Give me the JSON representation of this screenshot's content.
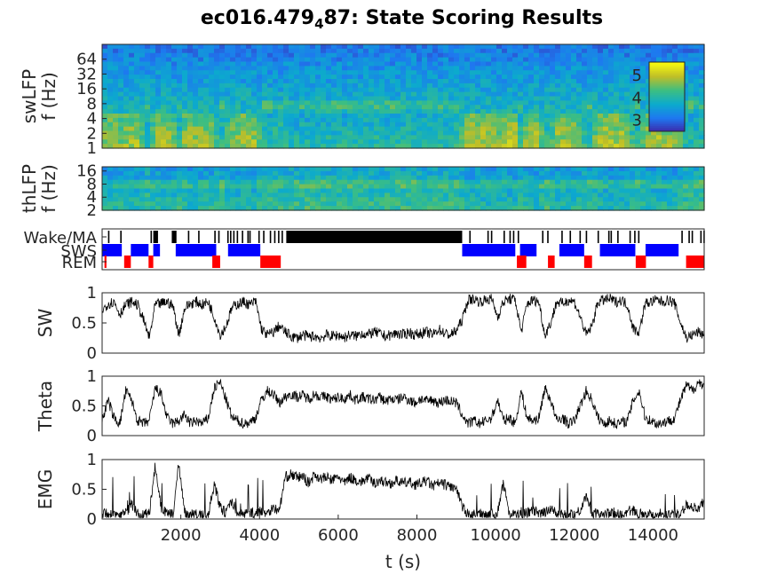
{
  "title": {
    "prefix": "ec016.479",
    "subscript": "4",
    "suffix": "87: State Scoring Results"
  },
  "colors": {
    "wake": "#000000",
    "sws": "#0000ff",
    "rem": "#ff0000",
    "trace": "#000000",
    "axis": "#262626"
  },
  "chart_data": [
    {
      "id": "swlfp",
      "type": "heatmap",
      "ylabel": [
        "swLFP",
        "f (Hz)"
      ],
      "yscale": "log",
      "yticks": [
        1,
        2,
        4,
        8,
        16,
        32,
        64
      ],
      "yticklabels": [
        "1",
        "2",
        "4",
        "8",
        "16",
        "32",
        "64"
      ],
      "ylim": [
        1,
        128
      ],
      "xlim": [
        0,
        15300
      ],
      "colormap": "parula",
      "colorbar": {
        "ticks": [
          3,
          4,
          5
        ],
        "labels": [
          "3",
          "4",
          "5"
        ],
        "clim": [
          2.5,
          5.6
        ],
        "placement": "inside-right"
      }
    },
    {
      "id": "thlfp",
      "type": "heatmap",
      "ylabel": [
        "thLFP",
        "f (Hz)"
      ],
      "yscale": "log",
      "yticks": [
        2,
        4,
        8,
        16
      ],
      "yticklabels": [
        "2",
        "4",
        "8",
        "16"
      ],
      "ylim": [
        2,
        20
      ],
      "xlim": [
        0,
        15300
      ],
      "colormap": "parula"
    },
    {
      "id": "states",
      "type": "bar",
      "yticklabels": [
        "Wake/MA",
        "SWS",
        "REM"
      ],
      "xlim": [
        0,
        15300
      ],
      "sws": [
        [
          0,
          500
        ],
        [
          730,
          1180
        ],
        [
          1300,
          1470
        ],
        [
          1870,
          2900
        ],
        [
          3200,
          4020
        ],
        [
          9150,
          10500
        ],
        [
          10620,
          11040
        ],
        [
          11620,
          12250
        ],
        [
          12650,
          13550
        ],
        [
          13810,
          14650
        ]
      ],
      "rem": [
        [
          60,
          110
        ],
        [
          560,
          730
        ],
        [
          1180,
          1300
        ],
        [
          2800,
          3000
        ],
        [
          4020,
          4540
        ],
        [
          10540,
          10780
        ],
        [
          11330,
          11500
        ],
        [
          12250,
          12450
        ],
        [
          13560,
          13820
        ],
        [
          14840,
          15300
        ]
      ],
      "wake": [
        [
          1300,
          1420
        ],
        [
          1770,
          1890
        ],
        [
          4680,
          9150
        ]
      ],
      "wake_ticks": [
        150,
        460,
        1230,
        2180,
        2440,
        2850,
        2950,
        3180,
        3250,
        3330,
        3420,
        3550,
        3690,
        3740,
        3970,
        4090,
        4260,
        4370,
        4470,
        4560,
        9330,
        9790,
        9880,
        10200,
        10350,
        10440,
        10560,
        11180,
        11310,
        11670,
        11880,
        12130,
        12290,
        12590,
        12860,
        12920,
        13090,
        13400,
        13520,
        13620,
        14720,
        14900,
        14980,
        15200,
        15280
      ]
    },
    {
      "id": "sw",
      "type": "line",
      "ylabel": "SW",
      "ylim": [
        0,
        1
      ],
      "yticks": [
        0,
        0.5,
        1
      ],
      "yticklabels": [
        "0",
        "0.5",
        "1"
      ],
      "xlim": [
        0,
        15300
      ],
      "x": [
        0,
        150,
        300,
        450,
        600,
        750,
        900,
        1050,
        1200,
        1350,
        1500,
        1650,
        1800,
        1950,
        2100,
        2250,
        2400,
        2550,
        2700,
        2850,
        3000,
        3150,
        3300,
        3450,
        3600,
        3750,
        3900,
        4050,
        4200,
        4350,
        4500,
        4650,
        4800,
        4950,
        5100,
        5250,
        5400,
        5550,
        5700,
        5850,
        6000,
        6150,
        6300,
        6450,
        6600,
        6750,
        6900,
        7050,
        7200,
        7350,
        7500,
        7650,
        7800,
        7950,
        8100,
        8250,
        8400,
        8550,
        8700,
        8850,
        9000,
        9150,
        9300,
        9450,
        9600,
        9750,
        9900,
        10050,
        10200,
        10350,
        10500,
        10650,
        10800,
        10950,
        11100,
        11250,
        11400,
        11550,
        11700,
        11850,
        12000,
        12150,
        12300,
        12450,
        12600,
        12750,
        12900,
        13050,
        13200,
        13350,
        13500,
        13650,
        13800,
        13950,
        14100,
        14250,
        14400,
        14550,
        14700,
        14850,
        15000,
        15150,
        15300
      ],
      "values": [
        0.7,
        0.82,
        0.85,
        0.65,
        0.8,
        0.85,
        0.8,
        0.55,
        0.25,
        0.8,
        0.82,
        0.85,
        0.78,
        0.3,
        0.75,
        0.82,
        0.85,
        0.8,
        0.85,
        0.6,
        0.3,
        0.45,
        0.75,
        0.82,
        0.85,
        0.8,
        0.86,
        0.4,
        0.3,
        0.35,
        0.45,
        0.35,
        0.28,
        0.25,
        0.3,
        0.27,
        0.28,
        0.25,
        0.3,
        0.28,
        0.3,
        0.26,
        0.3,
        0.28,
        0.33,
        0.3,
        0.35,
        0.32,
        0.28,
        0.3,
        0.33,
        0.3,
        0.35,
        0.3,
        0.33,
        0.35,
        0.3,
        0.4,
        0.33,
        0.3,
        0.37,
        0.55,
        0.88,
        0.9,
        0.85,
        0.88,
        0.9,
        0.6,
        0.85,
        0.9,
        0.88,
        0.35,
        0.82,
        0.88,
        0.85,
        0.3,
        0.5,
        0.85,
        0.82,
        0.88,
        0.85,
        0.6,
        0.3,
        0.45,
        0.85,
        0.88,
        0.9,
        0.85,
        0.88,
        0.8,
        0.4,
        0.35,
        0.82,
        0.85,
        0.88,
        0.85,
        0.88,
        0.82,
        0.5,
        0.25,
        0.3,
        0.35,
        0.3
      ]
    },
    {
      "id": "theta",
      "type": "line",
      "ylabel": "Theta",
      "ylim": [
        0,
        1
      ],
      "yticks": [
        0,
        0.5,
        1
      ],
      "yticklabels": [
        "0",
        "0.5",
        "1"
      ],
      "xlim": [
        0,
        15300
      ],
      "x": [
        0,
        150,
        300,
        450,
        600,
        750,
        900,
        1050,
        1200,
        1350,
        1500,
        1650,
        1800,
        1950,
        2100,
        2250,
        2400,
        2550,
        2700,
        2850,
        3000,
        3150,
        3300,
        3450,
        3600,
        3750,
        3900,
        4050,
        4200,
        4350,
        4500,
        4650,
        4800,
        4950,
        5100,
        5250,
        5400,
        5550,
        5700,
        5850,
        6000,
        6150,
        6300,
        6450,
        6600,
        6750,
        6900,
        7050,
        7200,
        7350,
        7500,
        7650,
        7800,
        7950,
        8100,
        8250,
        8400,
        8550,
        8700,
        8850,
        9000,
        9150,
        9300,
        9450,
        9600,
        9750,
        9900,
        10050,
        10200,
        10350,
        10500,
        10650,
        10800,
        10950,
        11100,
        11250,
        11400,
        11550,
        11700,
        11850,
        12000,
        12150,
        12300,
        12450,
        12600,
        12750,
        12900,
        13050,
        13200,
        13350,
        13500,
        13650,
        13800,
        13950,
        14100,
        14250,
        14400,
        14550,
        14700,
        14850,
        15000,
        15150,
        15300
      ],
      "values": [
        0.25,
        0.6,
        0.3,
        0.2,
        0.75,
        0.6,
        0.25,
        0.2,
        0.25,
        0.8,
        0.7,
        0.3,
        0.2,
        0.25,
        0.35,
        0.2,
        0.25,
        0.2,
        0.3,
        0.8,
        0.9,
        0.6,
        0.3,
        0.25,
        0.2,
        0.22,
        0.3,
        0.6,
        0.75,
        0.7,
        0.55,
        0.65,
        0.7,
        0.65,
        0.68,
        0.62,
        0.7,
        0.65,
        0.66,
        0.6,
        0.65,
        0.62,
        0.68,
        0.6,
        0.65,
        0.62,
        0.6,
        0.65,
        0.58,
        0.62,
        0.6,
        0.65,
        0.6,
        0.55,
        0.62,
        0.58,
        0.6,
        0.55,
        0.6,
        0.58,
        0.55,
        0.35,
        0.2,
        0.25,
        0.2,
        0.25,
        0.3,
        0.6,
        0.25,
        0.3,
        0.2,
        0.75,
        0.3,
        0.25,
        0.3,
        0.8,
        0.6,
        0.25,
        0.3,
        0.2,
        0.25,
        0.5,
        0.75,
        0.6,
        0.3,
        0.2,
        0.25,
        0.2,
        0.22,
        0.25,
        0.6,
        0.75,
        0.3,
        0.25,
        0.2,
        0.22,
        0.25,
        0.3,
        0.6,
        0.85,
        0.75,
        0.9,
        0.85
      ]
    },
    {
      "id": "emg",
      "type": "line",
      "ylabel": "EMG",
      "ylim": [
        0,
        1
      ],
      "yticks": [
        0,
        0.5,
        1
      ],
      "yticklabels": [
        "0",
        "0.5",
        "1"
      ],
      "xlim": [
        0,
        15300
      ],
      "xticks": [
        2000,
        4000,
        6000,
        8000,
        10000,
        12000,
        14000
      ],
      "xticklabels": [
        "2000",
        "4000",
        "6000",
        "8000",
        "10000",
        "12000",
        "14000"
      ],
      "xlabel": "t (s)",
      "x": [
        0,
        150,
        300,
        450,
        600,
        750,
        900,
        1050,
        1200,
        1350,
        1500,
        1650,
        1800,
        1950,
        2100,
        2250,
        2400,
        2550,
        2700,
        2850,
        3000,
        3150,
        3300,
        3450,
        3600,
        3750,
        3900,
        4050,
        4200,
        4350,
        4500,
        4650,
        4800,
        4950,
        5100,
        5250,
        5400,
        5550,
        5700,
        5850,
        6000,
        6150,
        6300,
        6450,
        6600,
        6750,
        6900,
        7050,
        7200,
        7350,
        7500,
        7650,
        7800,
        7950,
        8100,
        8250,
        8400,
        8550,
        8700,
        8850,
        9000,
        9150,
        9300,
        9450,
        9600,
        9750,
        9900,
        10050,
        10200,
        10350,
        10500,
        10650,
        10800,
        10950,
        11100,
        11250,
        11400,
        11550,
        11700,
        11850,
        12000,
        12150,
        12300,
        12450,
        12600,
        12750,
        12900,
        13050,
        13200,
        13350,
        13500,
        13650,
        13800,
        13950,
        14100,
        14250,
        14400,
        14550,
        14700,
        14850,
        15000,
        15150,
        15300
      ],
      "values": [
        0.08,
        0.1,
        0.08,
        0.07,
        0.1,
        0.25,
        0.08,
        0.07,
        0.1,
        0.9,
        0.2,
        0.08,
        0.07,
        0.95,
        0.1,
        0.08,
        0.07,
        0.06,
        0.08,
        0.6,
        0.2,
        0.1,
        0.3,
        0.1,
        0.08,
        0.12,
        0.08,
        0.15,
        0.1,
        0.2,
        0.12,
        0.7,
        0.75,
        0.7,
        0.72,
        0.6,
        0.75,
        0.68,
        0.7,
        0.65,
        0.72,
        0.6,
        0.7,
        0.65,
        0.62,
        0.7,
        0.6,
        0.65,
        0.62,
        0.6,
        0.65,
        0.6,
        0.62,
        0.58,
        0.6,
        0.65,
        0.55,
        0.6,
        0.58,
        0.55,
        0.5,
        0.2,
        0.08,
        0.07,
        0.1,
        0.08,
        0.07,
        0.1,
        0.6,
        0.1,
        0.08,
        0.07,
        0.1,
        0.15,
        0.08,
        0.1,
        0.2,
        0.08,
        0.07,
        0.1,
        0.08,
        0.15,
        0.4,
        0.1,
        0.08,
        0.07,
        0.1,
        0.08,
        0.07,
        0.1,
        0.15,
        0.08,
        0.1,
        0.07,
        0.08,
        0.1,
        0.08,
        0.07,
        0.1,
        0.25,
        0.2,
        0.15,
        0.3
      ]
    }
  ]
}
